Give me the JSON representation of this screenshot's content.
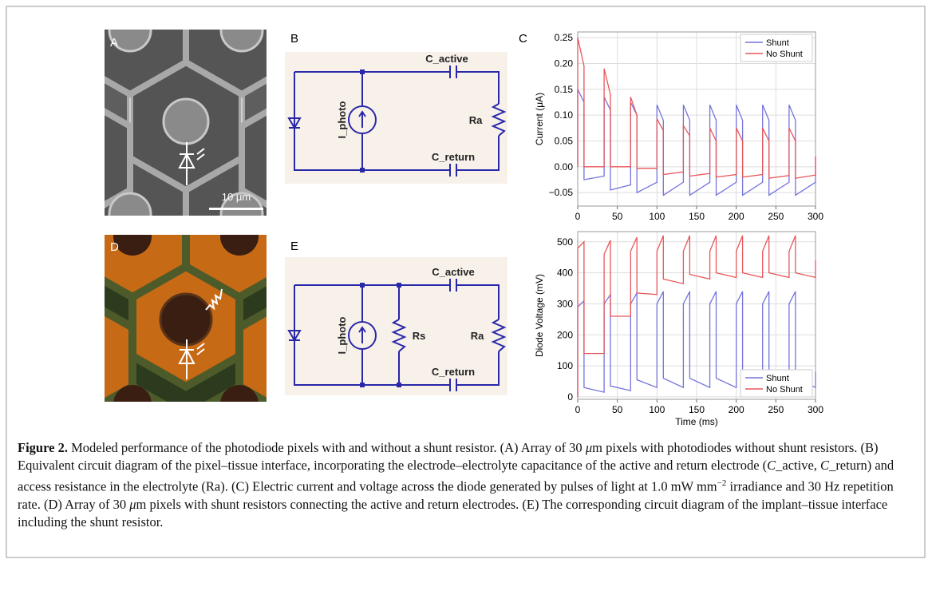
{
  "panel_labels": [
    "A",
    "B",
    "C",
    "D",
    "E"
  ],
  "scale_bar": "10 μm",
  "circuit_b": {
    "c_active": "C_active",
    "c_return": "C_return",
    "source": "I_photo",
    "ra": "Ra"
  },
  "circuit_e": {
    "c_active": "C_active",
    "c_return": "C_return",
    "source": "I_photo",
    "rs": "Rs",
    "ra": "Ra"
  },
  "chart_data": [
    {
      "type": "line",
      "y_label": "Current (μA)",
      "x": [
        0,
        0,
        8,
        8,
        33.3,
        33.3,
        41.3,
        41.3,
        66.7,
        66.7,
        74.7,
        74.7,
        100,
        100,
        108,
        108,
        133.3,
        133.3,
        141.3,
        141.3,
        166.7,
        166.7,
        174.7,
        174.7,
        200,
        200,
        208,
        208,
        233.3,
        233.3,
        241.3,
        241.3,
        266.7,
        266.7,
        274.7,
        274.7,
        300,
        300
      ],
      "series": [
        {
          "name": "Shunt",
          "color": "#7474dc",
          "values": [
            0,
            0.15,
            0.125,
            -0.025,
            -0.018,
            0.135,
            0.11,
            -0.045,
            -0.035,
            0.125,
            0.1,
            -0.05,
            -0.03,
            0.12,
            0.09,
            -0.055,
            -0.03,
            0.12,
            0.09,
            -0.055,
            -0.03,
            0.12,
            0.09,
            -0.055,
            -0.03,
            0.12,
            0.09,
            -0.055,
            -0.03,
            0.12,
            0.09,
            -0.055,
            -0.03,
            0.12,
            0.09,
            -0.055,
            -0.03,
            0.02
          ]
        },
        {
          "name": "No Shunt",
          "color": "#e8575a",
          "values": [
            0,
            0.25,
            0.195,
            0,
            0,
            0.19,
            0.14,
            0,
            0,
            0.135,
            0.1,
            -0.003,
            -0.003,
            0.093,
            0.07,
            -0.015,
            -0.01,
            0.08,
            0.06,
            -0.018,
            -0.013,
            0.075,
            0.05,
            -0.02,
            -0.015,
            0.075,
            0.05,
            -0.02,
            -0.015,
            0.075,
            0.05,
            -0.022,
            -0.017,
            0.075,
            0.05,
            -0.022,
            -0.016,
            0.02
          ]
        }
      ],
      "xlim": [
        0,
        300
      ],
      "xticks": [
        0,
        50,
        100,
        150,
        200,
        250,
        300
      ],
      "ylim": [
        -0.076,
        0.261
      ],
      "yticks": [
        {
          "value": -0.05,
          "label": "−0.05"
        },
        {
          "value": 0,
          "label": "0.00"
        },
        0.05,
        {
          "value": 0.1,
          "label": "0.10"
        },
        0.15,
        {
          "value": 0.2,
          "label": "0.20"
        },
        0.25
      ],
      "grid": true,
      "legend": "upper right"
    },
    {
      "type": "line",
      "x_label": "Time (ms)",
      "y_label": "Diode Voltage (mV)",
      "x": [
        0,
        0,
        8,
        8,
        33.3,
        33.3,
        41.3,
        41.3,
        66.7,
        66.7,
        74.7,
        74.7,
        100,
        100,
        108,
        108,
        133.3,
        133.3,
        141.3,
        141.3,
        166.7,
        166.7,
        174.7,
        174.7,
        200,
        200,
        208,
        208,
        233.3,
        233.3,
        241.3,
        241.3,
        266.7,
        266.7,
        274.7,
        274.7,
        300,
        300
      ],
      "series": [
        {
          "name": "Shunt",
          "color": "#7474dc",
          "values": [
            0,
            290,
            310,
            30,
            15,
            300,
            330,
            35,
            20,
            300,
            335,
            55,
            30,
            300,
            340,
            60,
            30,
            300,
            340,
            60,
            30,
            300,
            340,
            60,
            30,
            300,
            340,
            60,
            30,
            300,
            340,
            60,
            30,
            300,
            340,
            60,
            30,
            80
          ]
        },
        {
          "name": "No Shunt",
          "color": "#e8575a",
          "values": [
            0,
            480,
            500,
            140,
            140,
            460,
            505,
            260,
            260,
            470,
            515,
            335,
            330,
            470,
            520,
            380,
            365,
            470,
            520,
            395,
            380,
            470,
            520,
            400,
            385,
            470,
            520,
            400,
            385,
            470,
            520,
            400,
            385,
            470,
            520,
            400,
            385,
            440
          ]
        }
      ],
      "xlim": [
        0,
        300
      ],
      "xticks": [
        0,
        50,
        100,
        150,
        200,
        250,
        300
      ],
      "ylim": [
        -8,
        533
      ],
      "yticks": [
        0,
        100,
        200,
        300,
        400,
        500
      ],
      "grid": true,
      "legend": "lower right"
    }
  ],
  "caption": {
    "parts": [
      "Figure 2.",
      " Modeled performance of the photodiode pixels with and without a shunt resistor. (A) Array of 30 ",
      "μ",
      "m pixels with photodiodes without shunt resistors. (B) Equivalent circuit diagram of the pixel–tissue interface, incorporating the electrode–electrolyte capacitance of the active and return electrode (",
      "C",
      "_active, ",
      "C",
      "_return) and access resistance in the electrolyte (Ra). (C) Electric current and voltage across the diode generated by pulses of light at 1.0 mW mm",
      "−2",
      " irradiance and 30 Hz repetition rate. (D) Array of 30 ",
      "μ",
      "m pixels with shunt resistors connecting the active and return electrodes. (E) The corresponding circuit diagram of the implant–tissue interface including the shunt resistor."
    ]
  }
}
